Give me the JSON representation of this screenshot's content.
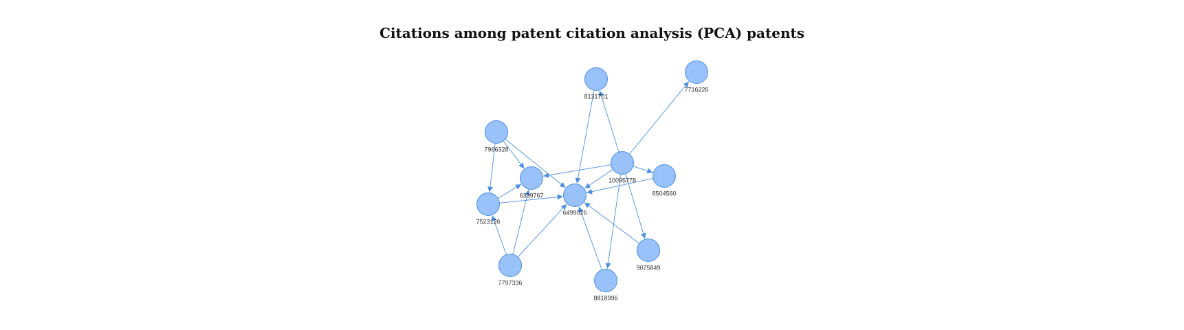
{
  "title": "Citations among patent citation analysis (PCA) patents",
  "colors": {
    "node_fill": "#99c1fa",
    "node_stroke": "#4a8fe0",
    "edge": "#4a8fe0"
  },
  "nodes": [
    {
      "id": "8131701"
    },
    {
      "id": "7716226"
    },
    {
      "id": "7966328"
    },
    {
      "id": "10095778"
    },
    {
      "id": "8504560"
    },
    {
      "id": "6339767"
    },
    {
      "id": "6499026"
    },
    {
      "id": "7523126"
    },
    {
      "id": "9075849"
    },
    {
      "id": "7797336"
    },
    {
      "id": "8818996"
    }
  ],
  "edges": [
    {
      "source": "10095778",
      "target": "8131701"
    },
    {
      "source": "10095778",
      "target": "7716226"
    },
    {
      "source": "10095778",
      "target": "8504560"
    },
    {
      "source": "10095778",
      "target": "6339767"
    },
    {
      "source": "10095778",
      "target": "6499026"
    },
    {
      "source": "10095778",
      "target": "9075849"
    },
    {
      "source": "10095778",
      "target": "8818996"
    },
    {
      "source": "8131701",
      "target": "6499026"
    },
    {
      "source": "8504560",
      "target": "6499026"
    },
    {
      "source": "7966328",
      "target": "6339767"
    },
    {
      "source": "7966328",
      "target": "6499026"
    },
    {
      "source": "7966328",
      "target": "7523126"
    },
    {
      "source": "7523126",
      "target": "6339767"
    },
    {
      "source": "7523126",
      "target": "6499026"
    },
    {
      "source": "7797336",
      "target": "7523126"
    },
    {
      "source": "7797336",
      "target": "6339767"
    },
    {
      "source": "7797336",
      "target": "6499026"
    },
    {
      "source": "9075849",
      "target": "6499026"
    },
    {
      "source": "8818996",
      "target": "6499026"
    }
  ]
}
